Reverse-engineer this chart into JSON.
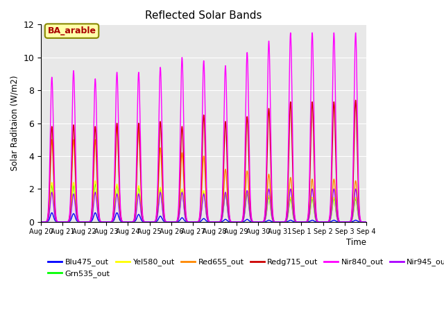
{
  "title": "Reflected Solar Bands",
  "ylabel": "Solar Raditaion (W/m2)",
  "xlabel": "Time",
  "annotation_text": "BA_arable",
  "bg_color": "#e8e8e8",
  "fig_bg": "#ffffff",
  "ylim": [
    0,
    12
  ],
  "num_days": 15,
  "steps_per_day": 288,
  "daily_peaks": {
    "Blu475_out": [
      0.55,
      0.5,
      0.55,
      0.55,
      0.45,
      0.35,
      0.25,
      0.2,
      0.15,
      0.15,
      0.1,
      0.1,
      0.1,
      0.1,
      0.1
    ],
    "Grn535_out": [
      2.2,
      2.2,
      2.3,
      2.2,
      2.1,
      2.0,
      1.9,
      1.8,
      1.7,
      1.7,
      1.5,
      1.4,
      1.4,
      1.4,
      1.4
    ],
    "Yel580_out": [
      2.4,
      2.4,
      2.5,
      2.3,
      2.2,
      2.1,
      2.0,
      1.9,
      1.8,
      1.8,
      1.6,
      1.5,
      1.5,
      1.5,
      1.5
    ],
    "Red655_out": [
      5.0,
      5.0,
      5.0,
      5.8,
      5.8,
      4.5,
      4.2,
      4.0,
      3.2,
      3.1,
      2.9,
      2.7,
      2.6,
      2.6,
      2.5
    ],
    "Redg715_out": [
      5.8,
      5.9,
      5.8,
      6.0,
      6.0,
      6.1,
      5.8,
      6.5,
      6.1,
      6.4,
      6.9,
      7.3,
      7.3,
      7.3,
      7.4
    ],
    "Nir840_out": [
      8.8,
      9.2,
      8.7,
      9.1,
      9.1,
      9.4,
      10.0,
      9.8,
      9.5,
      10.3,
      11.0,
      11.5,
      11.5,
      11.5,
      11.5
    ],
    "Nir945_out": [
      1.8,
      1.7,
      1.8,
      1.7,
      1.7,
      1.8,
      1.8,
      1.7,
      1.8,
      1.9,
      2.0,
      2.0,
      2.0,
      2.0,
      2.0
    ]
  },
  "legend_colors": {
    "Blu475_out": "#0000ff",
    "Grn535_out": "#00ff00",
    "Yel580_out": "#ffff00",
    "Red655_out": "#ff8800",
    "Redg715_out": "#cc0000",
    "Nir840_out": "#ff00ff",
    "Nir945_out": "#aa00ff"
  },
  "xtick_labels": [
    "Aug 20",
    "Aug 21",
    "Aug 22",
    "Aug 23",
    "Aug 24",
    "Aug 25",
    "Aug 26",
    "Aug 27",
    "Aug 28",
    "Aug 29",
    "Aug 30",
    "Aug 31",
    "Sep 1",
    "Sep 2",
    "Sep 3",
    "Sep 4"
  ],
  "ytick_labels": [
    0,
    2,
    4,
    6,
    8,
    10,
    12
  ]
}
